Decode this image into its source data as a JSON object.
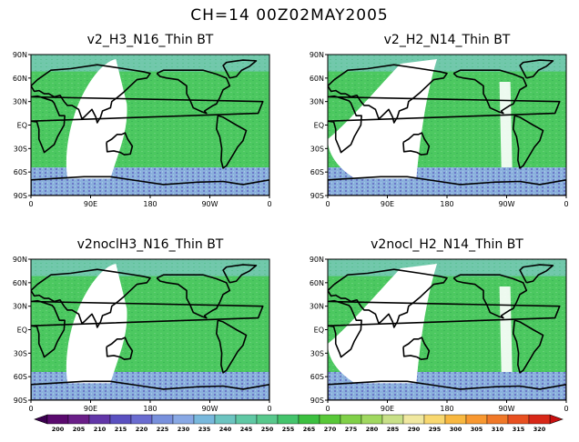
{
  "figure": {
    "title": "CH=14   00Z02MAY2005"
  },
  "axes": {
    "lat_ticks": [
      "90N",
      "60N",
      "30N",
      "EQ",
      "30S",
      "60S",
      "90S"
    ],
    "lon_ticks": [
      "0",
      "90E",
      "180",
      "90W",
      "0"
    ]
  },
  "panels": [
    {
      "id": "tl",
      "title": "v2_H3_N16_Thin BT",
      "gap_lon_range": [
        55,
        120
      ],
      "gap_shape": "lens"
    },
    {
      "id": "tr",
      "title": "v2_H2_N14_Thin BT",
      "gap_lon_range": [
        0,
        120
      ],
      "gap_shape": "wide"
    },
    {
      "id": "bl",
      "title": "v2noclH3_N16_Thin BT",
      "gap_lon_range": [
        55,
        120
      ],
      "gap_shape": "lens"
    },
    {
      "id": "br",
      "title": "v2nocl_H2_N14_Thin BT",
      "gap_lon_range": [
        0,
        120
      ],
      "gap_shape": "wide"
    }
  ],
  "colorbar": {
    "labels": [
      "200",
      "205",
      "210",
      "215",
      "220",
      "225",
      "230",
      "235",
      "240",
      "245",
      "250",
      "255",
      "265",
      "270",
      "275",
      "280",
      "285",
      "290",
      "295",
      "300",
      "305",
      "310",
      "315",
      "320"
    ],
    "colors": [
      "#5a0a6e",
      "#6a1e88",
      "#6236a8",
      "#5a50c0",
      "#6a6cd0",
      "#7890dc",
      "#88a8e4",
      "#78b8dc",
      "#6cc4c0",
      "#60c8a4",
      "#58c88c",
      "#44c46c",
      "#3cc040",
      "#58c838",
      "#80d048",
      "#a0d860",
      "#c8e088",
      "#f0e8a0",
      "#f8d870",
      "#f8b840",
      "#f89830",
      "#f07828",
      "#e85020",
      "#d82818"
    ],
    "left_arrow_color": "#3c0050",
    "right_arrow_color": "#c81010"
  }
}
